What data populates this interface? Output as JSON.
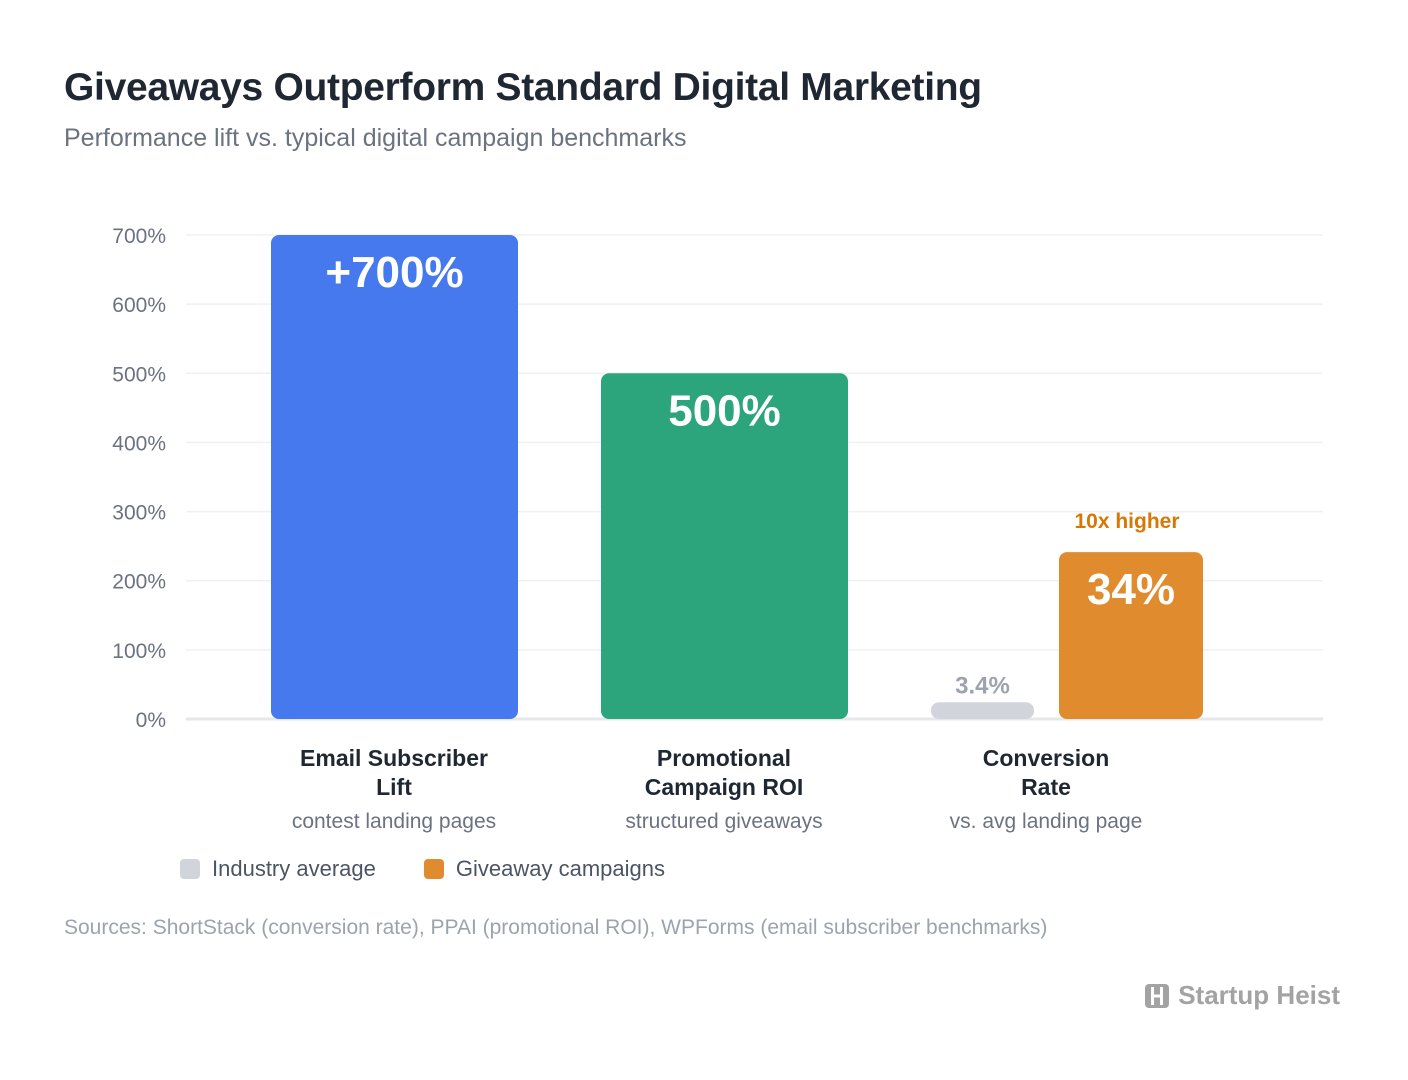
{
  "title": "Giveaways Outperform Standard Digital Marketing",
  "subtitle": "Performance lift vs. typical digital campaign benchmarks",
  "chart_data": {
    "type": "bar",
    "ylim": [
      0,
      700
    ],
    "yticks": [
      "0%",
      "100%",
      "200%",
      "300%",
      "400%",
      "500%",
      "600%",
      "700%"
    ],
    "ytick_values": [
      0,
      100,
      200,
      300,
      400,
      500,
      600,
      700
    ],
    "grid": true,
    "categories": [
      {
        "name": "Email Subscriber Lift",
        "name_lines": [
          "Email Subscriber",
          "Lift"
        ],
        "sublabel": "contest landing pages"
      },
      {
        "name": "Promotional Campaign ROI",
        "name_lines": [
          "Promotional",
          "Campaign ROI"
        ],
        "sublabel": "structured giveaways"
      },
      {
        "name": "Conversion Rate",
        "name_lines": [
          "Conversion",
          "Rate"
        ],
        "sublabel": "vs. avg landing page"
      }
    ],
    "series": [
      {
        "name": "Industry average",
        "color": "#d1d5db",
        "values": [
          null,
          null,
          3.4
        ],
        "labels": [
          null,
          null,
          "3.4%"
        ]
      },
      {
        "name": "Giveaway campaigns",
        "values": [
          700,
          500,
          34
        ],
        "labels": [
          "+700%",
          "500%",
          "34%"
        ],
        "colors": [
          "#4779ee",
          "#2ca57d",
          "#e08b2e"
        ]
      }
    ],
    "annotations": [
      {
        "category": "Conversion Rate",
        "text": "10x higher",
        "color": "#d97706"
      }
    ],
    "display_note": "Conversion Rate bars are drawn on an inflated scale (34% shown at ~34% of the 700 axis height unit ×10)."
  },
  "legend": [
    {
      "label": "Industry average",
      "color": "#d1d5db"
    },
    {
      "label": "Giveaway campaigns",
      "color": "#e08b2e"
    }
  ],
  "sources": "Sources: ShortStack (conversion rate), PPAI (promotional ROI), WPForms (email subscriber benchmarks)",
  "brand": {
    "name": "Startup Heist",
    "icon": "startup-heist-logo-icon"
  }
}
